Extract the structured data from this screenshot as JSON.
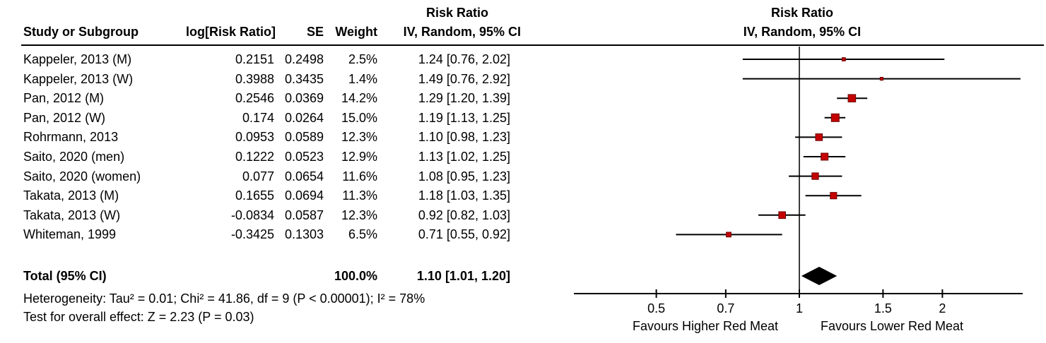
{
  "header": {
    "left_effect_title": "Risk Ratio",
    "left_effect_subtitle": "IV, Random, 95% CI",
    "right_effect_title": "Risk Ratio",
    "right_effect_subtitle": "IV, Random, 95% CI",
    "columns": {
      "study": "Study or Subgroup",
      "log_rr": "log[Risk Ratio]",
      "se": "SE",
      "weight": "Weight",
      "ci": "IV, Random, 95% CI"
    }
  },
  "rows": [
    {
      "study": "Kappeler, 2013 (M)",
      "log_rr": "0.2151",
      "se": "0.2498",
      "weight": "2.5%",
      "rr_ci": "1.24 [0.76, 2.02]"
    },
    {
      "study": "Kappeler, 2013 (W)",
      "log_rr": "0.3988",
      "se": "0.3435",
      "weight": "1.4%",
      "rr_ci": "1.49 [0.76, 2.92]"
    },
    {
      "study": "Pan, 2012 (M)",
      "log_rr": "0.2546",
      "se": "0.0369",
      "weight": "14.2%",
      "rr_ci": "1.29 [1.20, 1.39]"
    },
    {
      "study": "Pan, 2012 (W)",
      "log_rr": "0.174",
      "se": "0.0264",
      "weight": "15.0%",
      "rr_ci": "1.19 [1.13, 1.25]"
    },
    {
      "study": "Rohrmann, 2013",
      "log_rr": "0.0953",
      "se": "0.0589",
      "weight": "12.3%",
      "rr_ci": "1.10 [0.98, 1.23]"
    },
    {
      "study": "Saito, 2020 (men)",
      "log_rr": "0.1222",
      "se": "0.0523",
      "weight": "12.9%",
      "rr_ci": "1.13 [1.02, 1.25]"
    },
    {
      "study": "Saito, 2020 (women)",
      "log_rr": "0.077",
      "se": "0.0654",
      "weight": "11.6%",
      "rr_ci": "1.08 [0.95, 1.23]"
    },
    {
      "study": "Takata, 2013 (M)",
      "log_rr": "0.1655",
      "se": "0.0694",
      "weight": "11.3%",
      "rr_ci": "1.18 [1.03, 1.35]"
    },
    {
      "study": "Takata, 2013 (W)",
      "log_rr": "-0.0834",
      "se": "0.0587",
      "weight": "12.3%",
      "rr_ci": "0.92 [0.82, 1.03]"
    },
    {
      "study": "Whiteman, 1999",
      "log_rr": "-0.3425",
      "se": "0.1303",
      "weight": "6.5%",
      "rr_ci": "0.71 [0.55, 0.92]"
    }
  ],
  "total": {
    "label": "Total (95% CI)",
    "weight": "100.0%",
    "rr_ci": "1.10 [1.01, 1.20]"
  },
  "footer": {
    "heterogeneity": "Heterogeneity: Tau² = 0.01; Chi² = 41.86, df = 9 (P < 0.00001); I² = 78%",
    "overall_effect": "Test for overall effect: Z = 2.23 (P = 0.03)"
  },
  "chart_data": {
    "type": "forest",
    "x_scale": "log",
    "ticks": [
      0.5,
      0.7,
      1,
      1.5,
      2
    ],
    "tick_labels": [
      "0.5",
      "0.7",
      "1",
      "1.5",
      "2"
    ],
    "favours_left": "Favours Higher Red Meat",
    "favours_right": "Favours Lower Red Meat",
    "marker_color": "#c40000",
    "marker_edge_color": "#6e0000",
    "diamond_color": "#000000",
    "line_color": "#000000",
    "studies": [
      {
        "name": "Kappeler, 2013 (M)",
        "rr": 1.24,
        "ci_low": 0.76,
        "ci_high": 2.02,
        "weight_pct": 2.5
      },
      {
        "name": "Kappeler, 2013 (W)",
        "rr": 1.49,
        "ci_low": 0.76,
        "ci_high": 2.92,
        "weight_pct": 1.4
      },
      {
        "name": "Pan, 2012 (M)",
        "rr": 1.29,
        "ci_low": 1.2,
        "ci_high": 1.39,
        "weight_pct": 14.2
      },
      {
        "name": "Pan, 2012 (W)",
        "rr": 1.19,
        "ci_low": 1.13,
        "ci_high": 1.25,
        "weight_pct": 15.0
      },
      {
        "name": "Rohrmann, 2013",
        "rr": 1.1,
        "ci_low": 0.98,
        "ci_high": 1.23,
        "weight_pct": 12.3
      },
      {
        "name": "Saito, 2020 (men)",
        "rr": 1.13,
        "ci_low": 1.02,
        "ci_high": 1.25,
        "weight_pct": 12.9
      },
      {
        "name": "Saito, 2020 (women)",
        "rr": 1.08,
        "ci_low": 0.95,
        "ci_high": 1.23,
        "weight_pct": 11.6
      },
      {
        "name": "Takata, 2013 (M)",
        "rr": 1.18,
        "ci_low": 1.03,
        "ci_high": 1.35,
        "weight_pct": 11.3
      },
      {
        "name": "Takata, 2013 (W)",
        "rr": 0.92,
        "ci_low": 0.82,
        "ci_high": 1.03,
        "weight_pct": 12.3
      },
      {
        "name": "Whiteman, 1999",
        "rr": 0.71,
        "ci_low": 0.55,
        "ci_high": 0.92,
        "weight_pct": 6.5
      }
    ],
    "total": {
      "rr": 1.1,
      "ci_low": 1.01,
      "ci_high": 1.2
    }
  }
}
